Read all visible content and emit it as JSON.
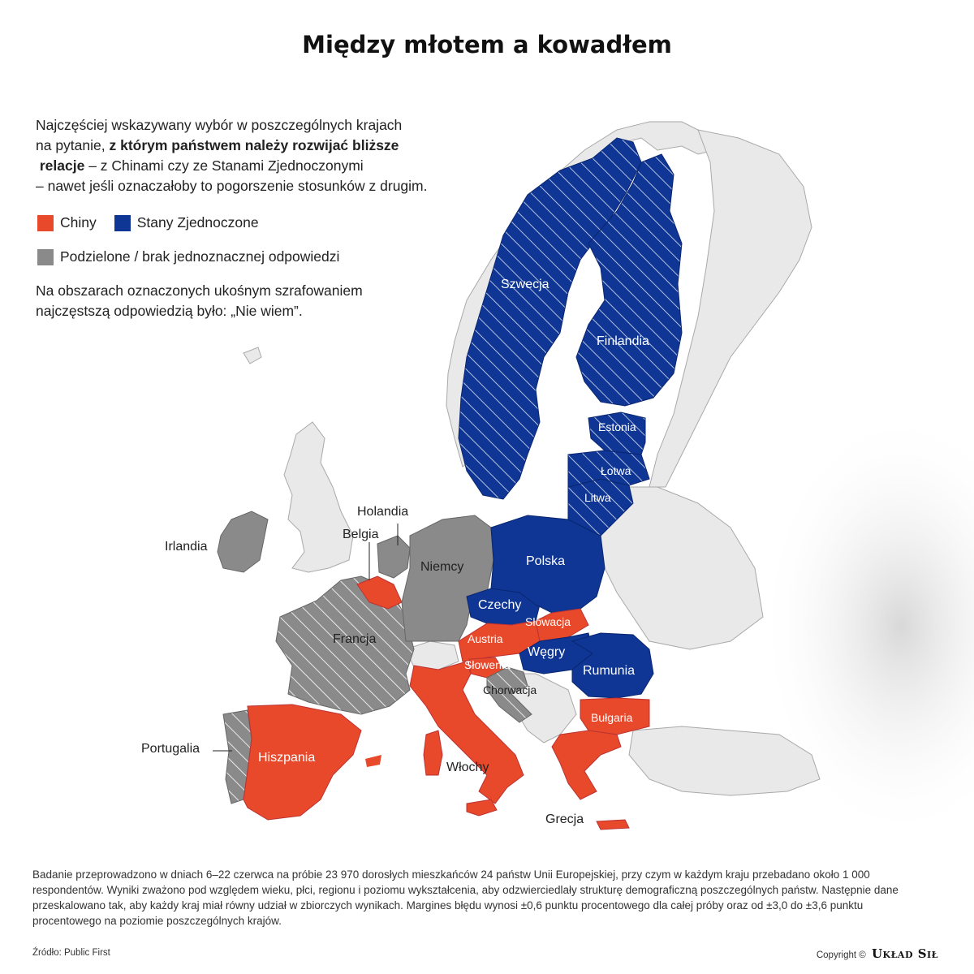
{
  "title": "Między młotem a kowadłem",
  "intro": {
    "line1": "Najczęściej wskazywany wybór w poszczególnych krajach",
    "line2_pre": "na pytanie, ",
    "line2_bold": "z którym państwem należy rozwijać bliższe",
    "line3_bold": "relacje",
    "line3_post": " – z Chinami czy ze Stanami Zjednoczonymi",
    "line4": "– nawet jeśli oznaczałoby to pogorszenie stosunków z drugim."
  },
  "legend": {
    "china_label": "Chiny",
    "usa_label": "Stany Zjednoczone",
    "divided_label": "Podzielone / brak jednoznacznej odpowiedzi",
    "colors": {
      "china": "#e8492a",
      "usa": "#0f3694",
      "divided": "#8a8a8a",
      "non_eu": "#e6e6e6"
    }
  },
  "note": {
    "line1": "Na obszarach oznaczonych ukośnym szrafowaniem",
    "line2": "najczęstszą odpowiedzią było: „Nie wiem”."
  },
  "countries": [
    {
      "name": "Szwecja",
      "answer": "usa",
      "hatched": true
    },
    {
      "name": "Finlandia",
      "answer": "usa",
      "hatched": true
    },
    {
      "name": "Estonia",
      "answer": "usa",
      "hatched": true
    },
    {
      "name": "Łotwa",
      "answer": "usa",
      "hatched": true
    },
    {
      "name": "Litwa",
      "answer": "usa",
      "hatched": true
    },
    {
      "name": "Polska",
      "answer": "usa",
      "hatched": false
    },
    {
      "name": "Czechy",
      "answer": "usa",
      "hatched": false
    },
    {
      "name": "Węgry",
      "answer": "usa",
      "hatched": false
    },
    {
      "name": "Rumunia",
      "answer": "usa",
      "hatched": false
    },
    {
      "name": "Słowacja",
      "answer": "china",
      "hatched": false
    },
    {
      "name": "Austria",
      "answer": "china",
      "hatched": false
    },
    {
      "name": "Słowenia",
      "answer": "china",
      "hatched": false
    },
    {
      "name": "Włochy",
      "answer": "china",
      "hatched": false
    },
    {
      "name": "Hiszpania",
      "answer": "china",
      "hatched": false
    },
    {
      "name": "Bułgaria",
      "answer": "china",
      "hatched": false
    },
    {
      "name": "Grecja",
      "answer": "china",
      "hatched": false
    },
    {
      "name": "Belgia",
      "answer": "china",
      "hatched": false
    },
    {
      "name": "Niemcy",
      "answer": "divided",
      "hatched": false
    },
    {
      "name": "Irlandia",
      "answer": "divided",
      "hatched": false
    },
    {
      "name": "Holandia",
      "answer": "divided",
      "hatched": false
    },
    {
      "name": "Francja",
      "answer": "divided",
      "hatched": true
    },
    {
      "name": "Portugalia",
      "answer": "divided",
      "hatched": true
    },
    {
      "name": "Chorwacja",
      "answer": "divided",
      "hatched": true
    }
  ],
  "footnote": "Badanie przeprowadzono w dniach 6–22 czerwca na próbie 23 970 dorosłych mieszkańców 24 państw Unii Europejskiej, przy czym w każdym kraju przebadano około 1 000 respondentów. Wyniki zważono pod względem wieku, płci, regionu i poziomu wykształcenia, aby odzwierciedlały strukturę demograficzną poszczególnych państw. Następnie dane przeskalowano tak, aby każdy kraj miał równy udział w zbiorczych wynikach. Margines błędu wynosi ±0,6 punktu procentowego dla całej próby oraz od ±3,0 do ±3,6 punktu procentowego na poziomie poszczególnych krajów.",
  "source": "Źródło: Public First",
  "copyright_prefix": "Copyright ©",
  "brand": "Układ Sił"
}
